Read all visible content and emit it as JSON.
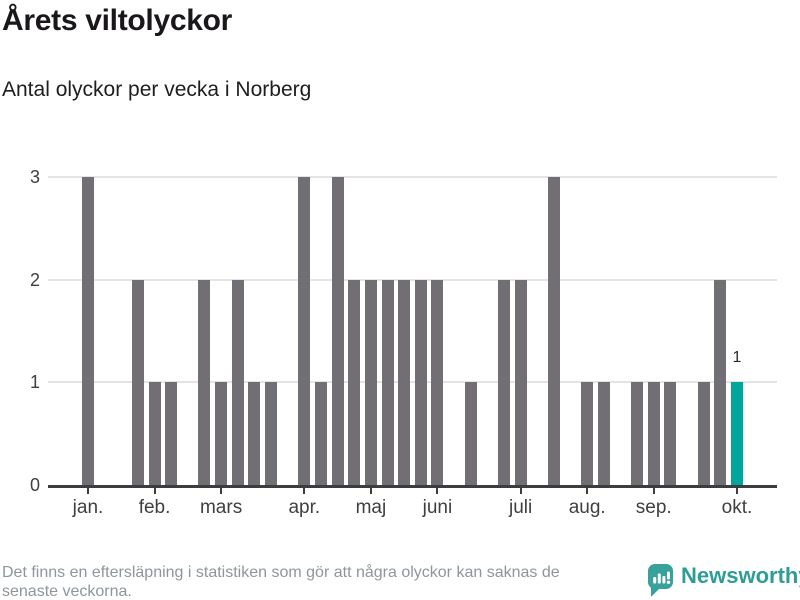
{
  "header": {
    "title": "Årets viltolyckor",
    "subtitle": "Antal olyckor per vecka i Norberg"
  },
  "chart_data": {
    "type": "bar",
    "title": "Årets viltolyckor",
    "subtitle": "Antal olyckor per vecka i Norberg",
    "ylabel": "",
    "xlabel": "",
    "ylim": [
      0,
      3
    ],
    "y_ticks": [
      0,
      1,
      2,
      3
    ],
    "grid": true,
    "categories_unit": "vecka",
    "values": [
      3,
      0,
      0,
      2,
      1,
      1,
      0,
      2,
      1,
      2,
      1,
      1,
      0,
      3,
      1,
      3,
      2,
      2,
      2,
      2,
      2,
      2,
      0,
      1,
      0,
      2,
      2,
      0,
      3,
      0,
      1,
      1,
      0,
      1,
      1,
      1,
      0,
      1,
      2,
      1
    ],
    "x_tick_labels": [
      "jan.",
      "feb.",
      "mars",
      "apr.",
      "maj",
      "juni",
      "juli",
      "aug.",
      "sep.",
      "okt."
    ],
    "x_tick_week_indices": [
      0,
      4,
      8,
      13,
      17,
      21,
      26,
      30,
      34,
      39
    ],
    "bar_color": "#716f74",
    "highlight_color": "#00a69b",
    "highlight_index": 39,
    "highlight_label": "1",
    "axis_color": "#3d3d3d",
    "grid_color": "#e4e4e4",
    "label_color": "#3f3f3f"
  },
  "footer": {
    "note_line1": "Det finns en eftersläpning i statistiken som gör att några olyckor kan saknas de",
    "note_line2": "senaste veckorna.",
    "brand": "Newsworthy",
    "brand_color": "#2f9d96",
    "brand_icon": "newsworthy-speech-bubble-chart-icon"
  }
}
